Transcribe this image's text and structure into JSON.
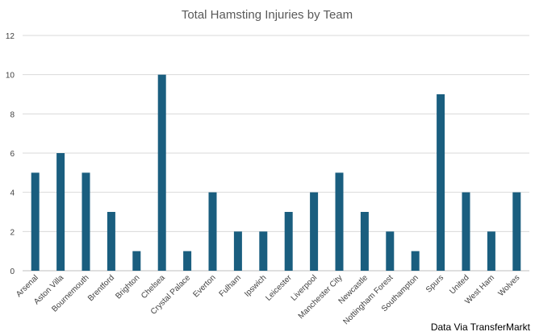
{
  "chart_data": {
    "type": "bar",
    "title": "Total Hamsting Injuries by Team",
    "xlabel": "",
    "ylabel": "",
    "ylim": [
      0,
      12
    ],
    "yticks": [
      0,
      2,
      4,
      6,
      8,
      10,
      12
    ],
    "grid": true,
    "legend": "none",
    "bar_color": "#1a5e7f",
    "categories": [
      "Arsenal",
      "Aston Villa",
      "Bournemouth",
      "Brentford",
      "Brighton",
      "Chelsea",
      "Crystal Palace",
      "Everton",
      "Fulham",
      "Ipswich",
      "Leicester",
      "Liverpool",
      "Manchester City",
      "Newcastle",
      "Nottingham Forest",
      "Southampton",
      "Spurs",
      "United",
      "West Ham",
      "Wolves"
    ],
    "values": [
      5,
      6,
      5,
      3,
      1,
      10,
      1,
      4,
      2,
      2,
      3,
      4,
      5,
      3,
      2,
      1,
      9,
      4,
      2,
      4
    ]
  },
  "source_note": "Data Via TransferMarkt"
}
